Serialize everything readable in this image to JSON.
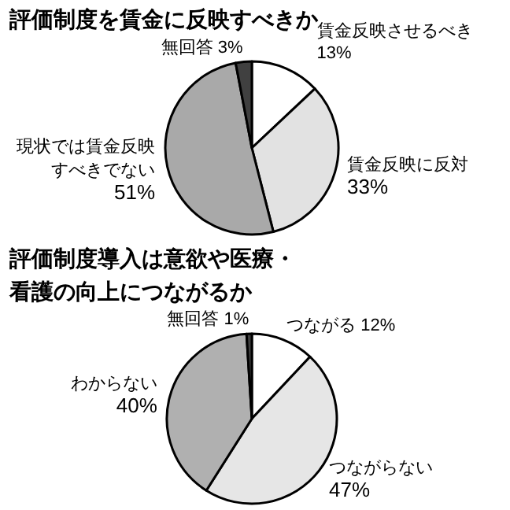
{
  "chart_data": [
    {
      "type": "pie",
      "title": "評価制度を賃金に反映すべきか",
      "categories": [
        "賃金反映させるべき",
        "賃金反映に反対",
        "現状では賃金反映すべきでない",
        "無回答"
      ],
      "values": [
        13,
        33,
        51,
        3
      ],
      "value_labels": [
        "13%",
        "33%",
        "51%",
        "3%"
      ],
      "colors": [
        "#ffffff",
        "#e2e2e2",
        "#a9a9a9",
        "#404040"
      ]
    },
    {
      "type": "pie",
      "title": "評価制度導入は意欲や医療・看護の向上につながるか",
      "categories": [
        "つながる",
        "つながらない",
        "わからない",
        "無回答"
      ],
      "values": [
        12,
        47,
        40,
        1
      ],
      "value_labels": [
        "12%",
        "47%",
        "40%",
        "1%"
      ],
      "colors": [
        "#ffffff",
        "#e6e6e6",
        "#b0b0b0",
        "#404040"
      ]
    }
  ]
}
